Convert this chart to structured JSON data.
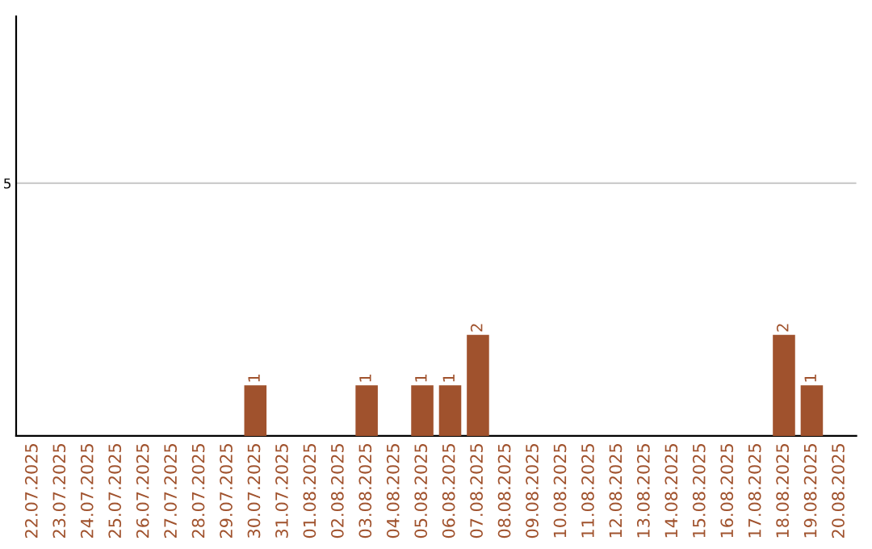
{
  "chart_data": {
    "type": "bar",
    "categories": [
      "22.07.2025",
      "23.07.2025",
      "24.07.2025",
      "25.07.2025",
      "26.07.2025",
      "27.07.2025",
      "28.07.2025",
      "29.07.2025",
      "30.07.2025",
      "31.07.2025",
      "01.08.2025",
      "02.08.2025",
      "03.08.2025",
      "04.08.2025",
      "05.08.2025",
      "06.08.2025",
      "07.08.2025",
      "08.08.2025",
      "09.08.2025",
      "10.08.2025",
      "11.08.2025",
      "12.08.2025",
      "13.08.2025",
      "14.08.2025",
      "15.08.2025",
      "16.08.2025",
      "17.08.2025",
      "18.08.2025",
      "19.08.2025",
      "20.08.2025"
    ],
    "values": [
      0,
      0,
      0,
      0,
      0,
      0,
      0,
      0,
      1,
      0,
      0,
      0,
      1,
      0,
      1,
      1,
      2,
      0,
      0,
      0,
      0,
      0,
      0,
      0,
      0,
      0,
      0,
      2,
      1,
      0
    ],
    "value_labels": [
      null,
      null,
      null,
      null,
      null,
      null,
      null,
      null,
      "1",
      null,
      null,
      null,
      "1",
      null,
      "1",
      "1",
      "2",
      null,
      null,
      null,
      null,
      null,
      null,
      null,
      null,
      null,
      null,
      "2",
      "1",
      null
    ],
    "color": "#a0522d",
    "ylim": [
      0,
      8.3
    ],
    "yticks": [
      5
    ],
    "grid": "y"
  }
}
